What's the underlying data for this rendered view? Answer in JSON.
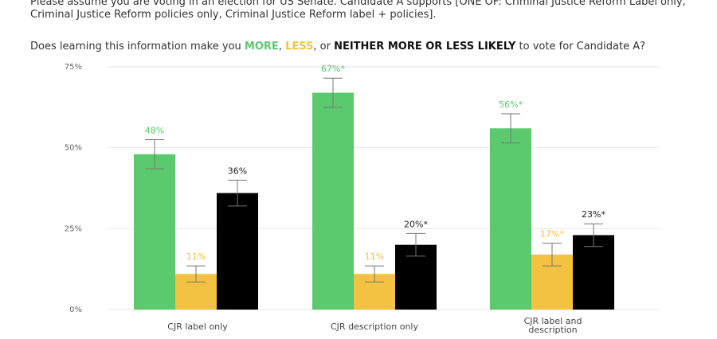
{
  "header": {
    "intro": "Please assume you are voting in an election for US Senate. Candidate A supports [ONE OF: Criminal Justice Reform Label only, Criminal Justice Reform policies only, Criminal Justice Reform label + policies].",
    "question_prefix": "Does learning this information make you ",
    "kw_more": "MORE",
    "sep1": ", ",
    "kw_less": "LESS",
    "sep2": ", or ",
    "kw_neither": "NEITHER MORE OR LESS LIKELY",
    "question_suffix": " to vote for Candidate A?"
  },
  "colors": {
    "more": "#5bc96d",
    "less": "#f4c242",
    "neither": "#000000",
    "grid": "#e6e6e6",
    "errorbar": "#777777"
  },
  "chart_data": {
    "type": "bar",
    "categories": [
      [
        "CJR label only"
      ],
      [
        "CJR description only"
      ],
      [
        "CJR label and",
        "description"
      ]
    ],
    "series": [
      {
        "key": "more",
        "values": [
          48,
          67,
          56
        ],
        "labels": [
          "48%",
          "67%*",
          "56%*"
        ],
        "error": [
          4.5,
          4.5,
          4.5
        ]
      },
      {
        "key": "less",
        "values": [
          11,
          11,
          17
        ],
        "labels": [
          "11%",
          "11%",
          "17%*"
        ],
        "error": [
          2.5,
          2.5,
          3.5
        ]
      },
      {
        "key": "neither",
        "values": [
          36,
          20,
          23
        ],
        "labels": [
          "36%",
          "20%*",
          "23%*"
        ],
        "error": [
          4,
          3.5,
          3.5
        ]
      }
    ],
    "yticks": [
      0,
      25,
      50,
      75
    ],
    "ytick_labels": [
      "0%",
      "25%",
      "50%",
      "75%"
    ],
    "ylim": [
      0,
      75
    ],
    "grid": true
  }
}
